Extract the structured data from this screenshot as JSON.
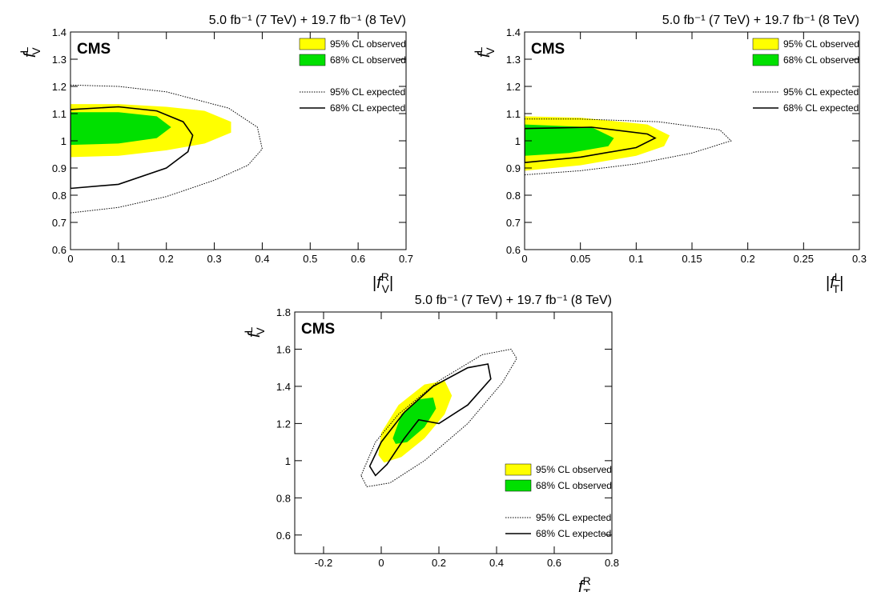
{
  "chart_data": [
    {
      "type": "contour",
      "title": "5.0 fb⁻¹ (7 TeV) + 19.7 fb⁻¹ (8 TeV)",
      "label": "CMS",
      "xlabel": {
        "prefix": "|",
        "base": "f",
        "sup": "R",
        "sub": "V",
        "suffix": "|"
      },
      "ylabel": {
        "base": "f",
        "sup": "L",
        "sub": "V"
      },
      "xlim": [
        0,
        0.7
      ],
      "xticks": [
        0,
        0.1,
        0.2,
        0.3,
        0.4,
        0.5,
        0.6,
        0.7
      ],
      "ylim": [
        0.6,
        1.4
      ],
      "yticks": [
        0.6,
        0.7,
        0.8,
        0.9,
        1,
        1.1,
        1.2,
        1.3,
        1.4
      ],
      "legend": "upper right",
      "series": [
        {
          "name": "95% CL observed",
          "style": "filled",
          "color": "#ffff00",
          "x": [
            0,
            0.1,
            0.2,
            0.28,
            0.335,
            0.335,
            0.28,
            0.2,
            0.1,
            0
          ],
          "y": [
            0.94,
            0.945,
            0.965,
            0.99,
            1.03,
            1.07,
            1.11,
            1.125,
            1.135,
            1.135
          ]
        },
        {
          "name": "68% CL observed",
          "style": "filled",
          "color": "#00e000",
          "x": [
            0,
            0.1,
            0.18,
            0.21,
            0.18,
            0.1,
            0
          ],
          "y": [
            0.985,
            0.99,
            1.01,
            1.05,
            1.09,
            1.105,
            1.105
          ]
        },
        {
          "name": "95% CL expected",
          "style": "dotted",
          "color": "#000000",
          "x": [
            0,
            0.1,
            0.2,
            0.3,
            0.37,
            0.4,
            0.39,
            0.33,
            0.2,
            0.1,
            0
          ],
          "y": [
            0.735,
            0.755,
            0.795,
            0.855,
            0.91,
            0.97,
            1.05,
            1.12,
            1.18,
            1.2,
            1.205
          ]
        },
        {
          "name": "68% CL expected",
          "style": "solid",
          "color": "#000000",
          "x": [
            0,
            0.1,
            0.2,
            0.245,
            0.255,
            0.235,
            0.18,
            0.1,
            0
          ],
          "y": [
            0.825,
            0.84,
            0.9,
            0.96,
            1.02,
            1.07,
            1.11,
            1.125,
            1.115
          ]
        }
      ]
    },
    {
      "type": "contour",
      "title": "5.0 fb⁻¹ (7 TeV) + 19.7 fb⁻¹ (8 TeV)",
      "label": "CMS",
      "xlabel": {
        "prefix": "|",
        "base": "f",
        "sup": "L",
        "sub": "T",
        "suffix": "|"
      },
      "ylabel": {
        "base": "f",
        "sup": "L",
        "sub": "V"
      },
      "xlim": [
        0,
        0.3
      ],
      "xticks": [
        0,
        0.05,
        0.1,
        0.15,
        0.2,
        0.25,
        0.3
      ],
      "ylim": [
        0.6,
        1.4
      ],
      "yticks": [
        0.6,
        0.7,
        0.8,
        0.9,
        1,
        1.1,
        1.2,
        1.3,
        1.4
      ],
      "legend": "upper right",
      "series": [
        {
          "name": "95% CL observed",
          "style": "filled",
          "color": "#ffff00",
          "x": [
            0,
            0.05,
            0.1,
            0.125,
            0.13,
            0.11,
            0.05,
            0
          ],
          "y": [
            0.89,
            0.91,
            0.945,
            0.98,
            1.02,
            1.06,
            1.085,
            1.09
          ]
        },
        {
          "name": "68% CL observed",
          "style": "filled",
          "color": "#00e000",
          "x": [
            0,
            0.04,
            0.075,
            0.08,
            0.06,
            0
          ],
          "y": [
            0.945,
            0.955,
            0.98,
            1.01,
            1.05,
            1.06
          ]
        },
        {
          "name": "95% CL expected",
          "style": "dotted",
          "color": "#000000",
          "x": [
            0,
            0.05,
            0.1,
            0.15,
            0.185,
            0.175,
            0.12,
            0.05,
            0
          ],
          "y": [
            0.875,
            0.89,
            0.915,
            0.955,
            1.0,
            1.04,
            1.07,
            1.08,
            1.08
          ]
        },
        {
          "name": "68% CL expected",
          "style": "solid",
          "color": "#000000",
          "x": [
            0,
            0.05,
            0.1,
            0.117,
            0.11,
            0.06,
            0
          ],
          "y": [
            0.92,
            0.94,
            0.975,
            1.01,
            1.025,
            1.05,
            1.045
          ]
        }
      ]
    },
    {
      "type": "contour",
      "title": "5.0 fb⁻¹ (7 TeV) + 19.7 fb⁻¹ (8 TeV)",
      "label": "CMS",
      "xlabel": {
        "base": "f",
        "sup": "R",
        "sub": "T"
      },
      "ylabel": {
        "base": "f",
        "sup": "L",
        "sub": "V"
      },
      "xlim": [
        -0.3,
        0.8
      ],
      "xticks": [
        -0.2,
        0,
        0.2,
        0.4,
        0.6,
        0.8
      ],
      "ylim": [
        0.5,
        1.8
      ],
      "yticks": [
        0.6,
        0.8,
        1,
        1.2,
        1.4,
        1.6,
        1.8
      ],
      "legend": "lower right",
      "series": [
        {
          "name": "95% CL observed",
          "style": "filled",
          "color": "#ffff00",
          "x": [
            -0.01,
            0.0,
            0.06,
            0.15,
            0.22,
            0.245,
            0.22,
            0.15,
            0.07,
            0.01
          ],
          "y": [
            1.03,
            1.15,
            1.3,
            1.41,
            1.43,
            1.35,
            1.25,
            1.12,
            1.02,
            0.99
          ]
        },
        {
          "name": "68% CL observed",
          "style": "filled",
          "color": "#00e000",
          "x": [
            0.04,
            0.07,
            0.13,
            0.18,
            0.19,
            0.15,
            0.09,
            0.05
          ],
          "y": [
            1.12,
            1.25,
            1.33,
            1.34,
            1.28,
            1.18,
            1.1,
            1.09
          ]
        },
        {
          "name": "95% CL expected",
          "style": "dotted",
          "color": "#000000",
          "x": [
            -0.07,
            -0.02,
            0.06,
            0.2,
            0.35,
            0.45,
            0.47,
            0.42,
            0.3,
            0.15,
            0.03,
            -0.05
          ],
          "y": [
            0.92,
            1.1,
            1.25,
            1.43,
            1.57,
            1.6,
            1.55,
            1.42,
            1.2,
            1.0,
            0.88,
            0.86
          ]
        },
        {
          "name": "68% CL expected",
          "style": "solid",
          "color": "#000000",
          "x": [
            -0.04,
            0.0,
            0.08,
            0.18,
            0.3,
            0.37,
            0.38,
            0.3,
            0.2,
            0.13,
            0.08,
            0.02,
            -0.02
          ],
          "y": [
            0.97,
            1.1,
            1.26,
            1.4,
            1.5,
            1.52,
            1.44,
            1.3,
            1.2,
            1.22,
            1.12,
            0.98,
            0.92
          ]
        }
      ]
    }
  ]
}
